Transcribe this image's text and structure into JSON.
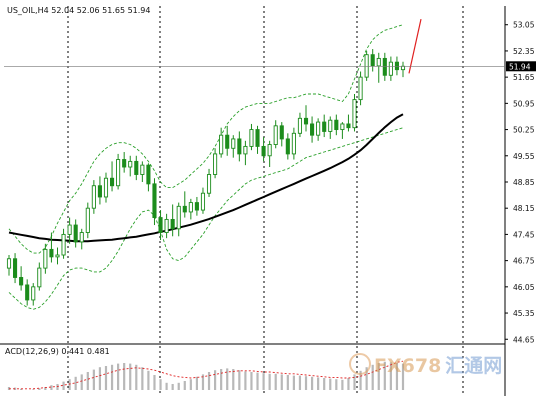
{
  "header": {
    "symbol": "US_OIL,H4",
    "ohlc": "52.04 52.06 51.65 51.94"
  },
  "macd": {
    "label": "ACD(12,26,9) 0.441 0.481"
  },
  "watermark": {
    "brand": "FX678",
    "cn": "汇通网"
  },
  "colors": {
    "candle": "#1c8c1c",
    "ma": "#000000",
    "band": "#2aa02a",
    "signal": "#e02020",
    "arrow": "#e02020",
    "grid": "#000000",
    "histogram": "#b8b8b8",
    "current_price_box": "#000000"
  },
  "chart_data": {
    "type": "candlestick",
    "title": "US_OIL,H4",
    "ylim": [
      45.0,
      53.5
    ],
    "y_ticks": [
      "53.05",
      "52.35",
      "51.65",
      "50.95",
      "50.25",
      "49.55",
      "48.85",
      "48.15",
      "47.45",
      "46.75",
      "46.05",
      "45.35",
      "44.65"
    ],
    "current_price": "51.94",
    "candles": [
      [
        46.55,
        46.9,
        46.35,
        46.8
      ],
      [
        46.8,
        46.95,
        46.15,
        46.3
      ],
      [
        46.3,
        46.6,
        45.95,
        46.1
      ],
      [
        46.1,
        46.25,
        45.55,
        45.7
      ],
      [
        45.7,
        46.15,
        45.55,
        46.05
      ],
      [
        46.05,
        46.7,
        45.95,
        46.55
      ],
      [
        46.55,
        47.2,
        46.4,
        47.05
      ],
      [
        47.05,
        47.5,
        46.7,
        46.85
      ],
      [
        46.85,
        47.1,
        46.65,
        46.9
      ],
      [
        46.9,
        47.6,
        46.8,
        47.45
      ],
      [
        47.45,
        47.9,
        47.2,
        47.7
      ],
      [
        47.7,
        47.85,
        47.1,
        47.25
      ],
      [
        47.25,
        47.6,
        47.05,
        47.5
      ],
      [
        47.5,
        48.3,
        47.35,
        48.15
      ],
      [
        48.15,
        48.9,
        48.0,
        48.75
      ],
      [
        48.75,
        49.0,
        48.25,
        48.45
      ],
      [
        48.45,
        49.1,
        48.3,
        48.95
      ],
      [
        48.95,
        49.4,
        48.6,
        48.75
      ],
      [
        48.75,
        49.6,
        48.65,
        49.45
      ],
      [
        49.45,
        49.65,
        49.1,
        49.25
      ],
      [
        49.25,
        49.55,
        49.0,
        49.4
      ],
      [
        49.4,
        49.55,
        48.9,
        49.05
      ],
      [
        49.05,
        49.4,
        48.85,
        49.3
      ],
      [
        49.3,
        49.35,
        48.6,
        48.8
      ],
      [
        48.8,
        48.95,
        47.7,
        47.9
      ],
      [
        47.9,
        48.1,
        47.3,
        47.5
      ],
      [
        47.5,
        48.0,
        47.35,
        47.85
      ],
      [
        47.85,
        48.25,
        47.4,
        47.6
      ],
      [
        47.6,
        48.3,
        47.4,
        48.2
      ],
      [
        48.2,
        48.6,
        47.9,
        48.05
      ],
      [
        48.05,
        48.4,
        47.85,
        48.3
      ],
      [
        48.3,
        48.45,
        47.95,
        48.1
      ],
      [
        48.1,
        48.7,
        48.0,
        48.55
      ],
      [
        48.55,
        49.2,
        48.45,
        49.05
      ],
      [
        49.05,
        49.75,
        48.95,
        49.6
      ],
      [
        49.6,
        50.3,
        49.5,
        50.1
      ],
      [
        50.1,
        50.35,
        49.55,
        49.75
      ],
      [
        49.75,
        50.1,
        49.5,
        50.0
      ],
      [
        50.0,
        50.2,
        49.4,
        49.6
      ],
      [
        49.6,
        49.95,
        49.3,
        49.8
      ],
      [
        49.8,
        50.4,
        49.7,
        50.25
      ],
      [
        50.25,
        50.35,
        49.6,
        49.8
      ],
      [
        49.8,
        50.05,
        49.4,
        49.55
      ],
      [
        49.55,
        49.95,
        49.25,
        49.85
      ],
      [
        49.85,
        50.5,
        49.75,
        50.35
      ],
      [
        50.35,
        50.45,
        49.8,
        50.0
      ],
      [
        50.0,
        50.15,
        49.45,
        49.6
      ],
      [
        49.6,
        50.3,
        49.45,
        50.15
      ],
      [
        50.15,
        50.7,
        50.05,
        50.55
      ],
      [
        50.55,
        50.9,
        50.2,
        50.4
      ],
      [
        50.4,
        50.6,
        49.9,
        50.1
      ],
      [
        50.1,
        50.55,
        49.95,
        50.45
      ],
      [
        50.45,
        50.65,
        50.05,
        50.2
      ],
      [
        50.2,
        50.6,
        50.0,
        50.5
      ],
      [
        50.5,
        50.65,
        50.1,
        50.25
      ],
      [
        50.25,
        50.45,
        50.0,
        50.4
      ],
      [
        50.4,
        50.65,
        50.2,
        50.3
      ],
      [
        50.3,
        51.2,
        50.2,
        51.05
      ],
      [
        51.05,
        51.8,
        50.9,
        51.65
      ],
      [
        51.65,
        52.35,
        51.55,
        52.25
      ],
      [
        52.25,
        52.4,
        51.8,
        51.95
      ],
      [
        51.95,
        52.3,
        51.5,
        52.15
      ],
      [
        52.15,
        52.3,
        51.55,
        51.7
      ],
      [
        51.7,
        52.2,
        51.55,
        52.05
      ],
      [
        52.05,
        52.2,
        51.7,
        51.85
      ],
      [
        51.85,
        52.06,
        51.65,
        51.94
      ]
    ],
    "ma_series": [
      47.5,
      47.47,
      47.44,
      47.41,
      47.38,
      47.35,
      47.33,
      47.31,
      47.3,
      47.29,
      47.28,
      47.27,
      47.27,
      47.27,
      47.28,
      47.29,
      47.3,
      47.31,
      47.33,
      47.35,
      47.37,
      47.39,
      47.42,
      47.45,
      47.48,
      47.52,
      47.55,
      47.59,
      47.63,
      47.67,
      47.71,
      47.76,
      47.81,
      47.86,
      47.92,
      47.98,
      48.04,
      48.1,
      48.17,
      48.24,
      48.31,
      48.38,
      48.45,
      48.52,
      48.59,
      48.66,
      48.73,
      48.8,
      48.87,
      48.94,
      49.01,
      49.08,
      49.15,
      49.22,
      49.3,
      49.38,
      49.47,
      49.58,
      49.7,
      49.84,
      50.0,
      50.16,
      50.31,
      50.45,
      50.57,
      50.66
    ],
    "band_upper": [
      47.6,
      47.4,
      47.2,
      47.05,
      46.95,
      46.95,
      47.1,
      47.4,
      47.75,
      48.05,
      48.35,
      48.55,
      48.8,
      49.1,
      49.4,
      49.6,
      49.75,
      49.85,
      49.9,
      49.9,
      49.85,
      49.75,
      49.6,
      49.4,
      49.15,
      48.85,
      48.7,
      48.7,
      48.8,
      48.9,
      49.05,
      49.2,
      49.35,
      49.55,
      49.8,
      50.1,
      50.4,
      50.6,
      50.75,
      50.85,
      50.9,
      50.95,
      50.95,
      50.95,
      51.0,
      51.05,
      51.1,
      51.1,
      51.15,
      51.2,
      51.2,
      51.2,
      51.15,
      51.1,
      51.05,
      51.0,
      51.2,
      51.6,
      52.0,
      52.4,
      52.65,
      52.8,
      52.9,
      52.95,
      53.0,
      53.05
    ],
    "band_lower": [
      45.9,
      45.75,
      45.6,
      45.5,
      45.45,
      45.5,
      45.65,
      45.85,
      46.1,
      46.35,
      46.5,
      46.55,
      46.55,
      46.5,
      46.45,
      46.45,
      46.55,
      46.75,
      47.0,
      47.3,
      47.6,
      47.85,
      48.05,
      48.1,
      47.95,
      47.55,
      47.05,
      46.8,
      46.75,
      46.85,
      47.05,
      47.25,
      47.45,
      47.7,
      47.95,
      48.15,
      48.35,
      48.5,
      48.65,
      48.8,
      48.9,
      48.95,
      49.0,
      49.05,
      49.1,
      49.15,
      49.2,
      49.3,
      49.4,
      49.5,
      49.55,
      49.6,
      49.65,
      49.7,
      49.75,
      49.8,
      49.85,
      49.9,
      49.95,
      50.0,
      50.05,
      50.1,
      50.15,
      50.2,
      50.25,
      50.3
    ],
    "macd_histogram": [
      0.05,
      0.04,
      0.02,
      0.0,
      0.01,
      0.03,
      0.05,
      0.08,
      0.1,
      0.14,
      0.18,
      0.22,
      0.26,
      0.3,
      0.34,
      0.38,
      0.4,
      0.42,
      0.44,
      0.45,
      0.44,
      0.42,
      0.38,
      0.32,
      0.25,
      0.18,
      0.12,
      0.1,
      0.12,
      0.15,
      0.18,
      0.22,
      0.26,
      0.3,
      0.33,
      0.35,
      0.36,
      0.35,
      0.33,
      0.31,
      0.3,
      0.29,
      0.28,
      0.27,
      0.27,
      0.26,
      0.25,
      0.24,
      0.24,
      0.23,
      0.22,
      0.21,
      0.2,
      0.19,
      0.18,
      0.17,
      0.2,
      0.26,
      0.32,
      0.38,
      0.42,
      0.45,
      0.47,
      0.46,
      0.45,
      0.44
    ],
    "macd_signal": [
      0.02,
      0.02,
      0.02,
      0.02,
      0.02,
      0.03,
      0.04,
      0.05,
      0.06,
      0.08,
      0.1,
      0.12,
      0.15,
      0.18,
      0.21,
      0.24,
      0.27,
      0.3,
      0.33,
      0.35,
      0.36,
      0.37,
      0.36,
      0.35,
      0.33,
      0.3,
      0.27,
      0.24,
      0.22,
      0.21,
      0.2,
      0.21,
      0.22,
      0.24,
      0.26,
      0.28,
      0.3,
      0.31,
      0.32,
      0.32,
      0.32,
      0.31,
      0.3,
      0.3,
      0.29,
      0.28,
      0.27,
      0.27,
      0.26,
      0.25,
      0.24,
      0.23,
      0.22,
      0.21,
      0.21,
      0.2,
      0.2,
      0.21,
      0.23,
      0.26,
      0.3,
      0.34,
      0.38,
      0.42,
      0.46,
      0.48
    ]
  }
}
